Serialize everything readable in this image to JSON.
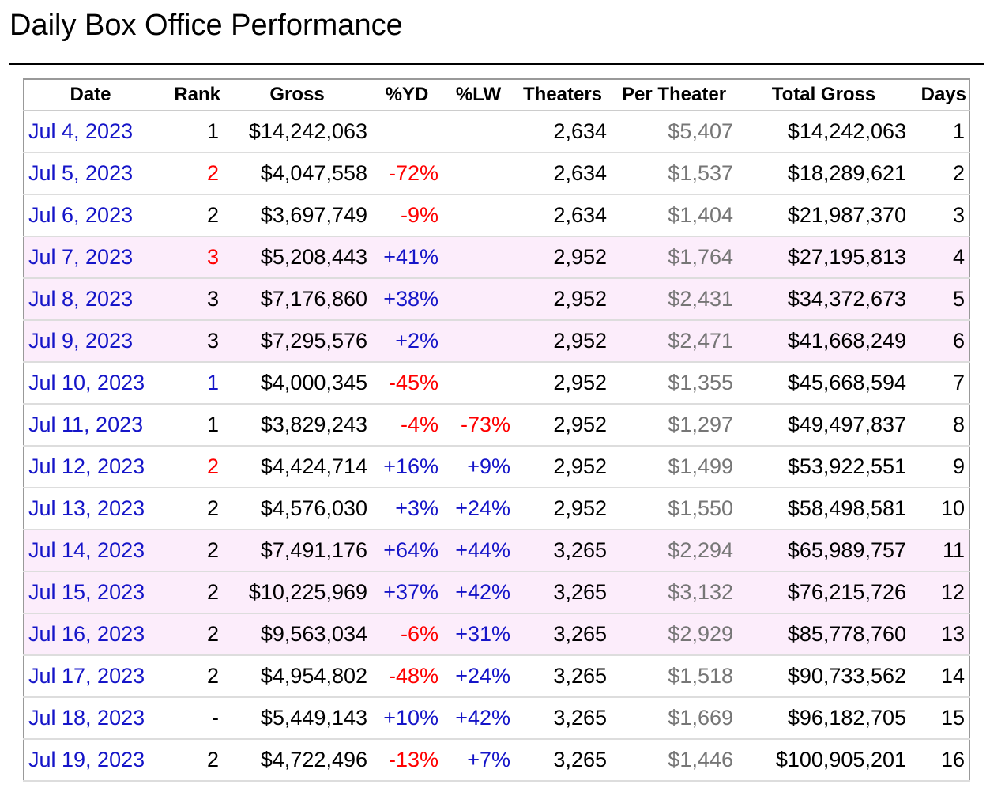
{
  "page": {
    "title": "Daily Box Office Performance"
  },
  "table": {
    "headers": [
      "Date",
      "Rank",
      "Gross",
      "%YD",
      "%LW",
      "Theaters",
      "Per Theater",
      "Total Gross",
      "Days"
    ],
    "rows": [
      {
        "date": "Jul 4, 2023",
        "rank": "1",
        "rank_color": "black",
        "gross": "$14,242,063",
        "yd": "",
        "yd_color": "",
        "lw": "",
        "lw_color": "",
        "theaters": "2,634",
        "per_theater": "$5,407",
        "total": "$14,242,063",
        "days": "1",
        "weekend": false
      },
      {
        "date": "Jul 5, 2023",
        "rank": "2",
        "rank_color": "red",
        "gross": "$4,047,558",
        "yd": "-72%",
        "yd_color": "red",
        "lw": "",
        "lw_color": "",
        "theaters": "2,634",
        "per_theater": "$1,537",
        "total": "$18,289,621",
        "days": "2",
        "weekend": false
      },
      {
        "date": "Jul 6, 2023",
        "rank": "2",
        "rank_color": "black",
        "gross": "$3,697,749",
        "yd": "-9%",
        "yd_color": "red",
        "lw": "",
        "lw_color": "",
        "theaters": "2,634",
        "per_theater": "$1,404",
        "total": "$21,987,370",
        "days": "3",
        "weekend": false
      },
      {
        "date": "Jul 7, 2023",
        "rank": "3",
        "rank_color": "red",
        "gross": "$5,208,443",
        "yd": "+41%",
        "yd_color": "blue",
        "lw": "",
        "lw_color": "",
        "theaters": "2,952",
        "per_theater": "$1,764",
        "total": "$27,195,813",
        "days": "4",
        "weekend": true
      },
      {
        "date": "Jul 8, 2023",
        "rank": "3",
        "rank_color": "black",
        "gross": "$7,176,860",
        "yd": "+38%",
        "yd_color": "blue",
        "lw": "",
        "lw_color": "",
        "theaters": "2,952",
        "per_theater": "$2,431",
        "total": "$34,372,673",
        "days": "5",
        "weekend": true
      },
      {
        "date": "Jul 9, 2023",
        "rank": "3",
        "rank_color": "black",
        "gross": "$7,295,576",
        "yd": "+2%",
        "yd_color": "blue",
        "lw": "",
        "lw_color": "",
        "theaters": "2,952",
        "per_theater": "$2,471",
        "total": "$41,668,249",
        "days": "6",
        "weekend": true
      },
      {
        "date": "Jul 10, 2023",
        "rank": "1",
        "rank_color": "blue",
        "gross": "$4,000,345",
        "yd": "-45%",
        "yd_color": "red",
        "lw": "",
        "lw_color": "",
        "theaters": "2,952",
        "per_theater": "$1,355",
        "total": "$45,668,594",
        "days": "7",
        "weekend": false
      },
      {
        "date": "Jul 11, 2023",
        "rank": "1",
        "rank_color": "black",
        "gross": "$3,829,243",
        "yd": "-4%",
        "yd_color": "red",
        "lw": "-73%",
        "lw_color": "red",
        "theaters": "2,952",
        "per_theater": "$1,297",
        "total": "$49,497,837",
        "days": "8",
        "weekend": false
      },
      {
        "date": "Jul 12, 2023",
        "rank": "2",
        "rank_color": "red",
        "gross": "$4,424,714",
        "yd": "+16%",
        "yd_color": "blue",
        "lw": "+9%",
        "lw_color": "blue",
        "theaters": "2,952",
        "per_theater": "$1,499",
        "total": "$53,922,551",
        "days": "9",
        "weekend": false
      },
      {
        "date": "Jul 13, 2023",
        "rank": "2",
        "rank_color": "black",
        "gross": "$4,576,030",
        "yd": "+3%",
        "yd_color": "blue",
        "lw": "+24%",
        "lw_color": "blue",
        "theaters": "2,952",
        "per_theater": "$1,550",
        "total": "$58,498,581",
        "days": "10",
        "weekend": false
      },
      {
        "date": "Jul 14, 2023",
        "rank": "2",
        "rank_color": "black",
        "gross": "$7,491,176",
        "yd": "+64%",
        "yd_color": "blue",
        "lw": "+44%",
        "lw_color": "blue",
        "theaters": "3,265",
        "per_theater": "$2,294",
        "total": "$65,989,757",
        "days": "11",
        "weekend": true
      },
      {
        "date": "Jul 15, 2023",
        "rank": "2",
        "rank_color": "black",
        "gross": "$10,225,969",
        "yd": "+37%",
        "yd_color": "blue",
        "lw": "+42%",
        "lw_color": "blue",
        "theaters": "3,265",
        "per_theater": "$3,132",
        "total": "$76,215,726",
        "days": "12",
        "weekend": true
      },
      {
        "date": "Jul 16, 2023",
        "rank": "2",
        "rank_color": "black",
        "gross": "$9,563,034",
        "yd": "-6%",
        "yd_color": "red",
        "lw": "+31%",
        "lw_color": "blue",
        "theaters": "3,265",
        "per_theater": "$2,929",
        "total": "$85,778,760",
        "days": "13",
        "weekend": true
      },
      {
        "date": "Jul 17, 2023",
        "rank": "2",
        "rank_color": "black",
        "gross": "$4,954,802",
        "yd": "-48%",
        "yd_color": "red",
        "lw": "+24%",
        "lw_color": "blue",
        "theaters": "3,265",
        "per_theater": "$1,518",
        "total": "$90,733,562",
        "days": "14",
        "weekend": false
      },
      {
        "date": "Jul 18, 2023",
        "rank": "-",
        "rank_color": "black",
        "gross": "$5,449,143",
        "yd": "+10%",
        "yd_color": "blue",
        "lw": "+42%",
        "lw_color": "blue",
        "theaters": "3,265",
        "per_theater": "$1,669",
        "total": "$96,182,705",
        "days": "15",
        "weekend": false
      },
      {
        "date": "Jul 19, 2023",
        "rank": "2",
        "rank_color": "black",
        "gross": "$4,722,496",
        "yd": "-13%",
        "yd_color": "red",
        "lw": "+7%",
        "lw_color": "blue",
        "theaters": "3,265",
        "per_theater": "$1,446",
        "total": "$100,905,201",
        "days": "16",
        "weekend": false
      }
    ]
  }
}
